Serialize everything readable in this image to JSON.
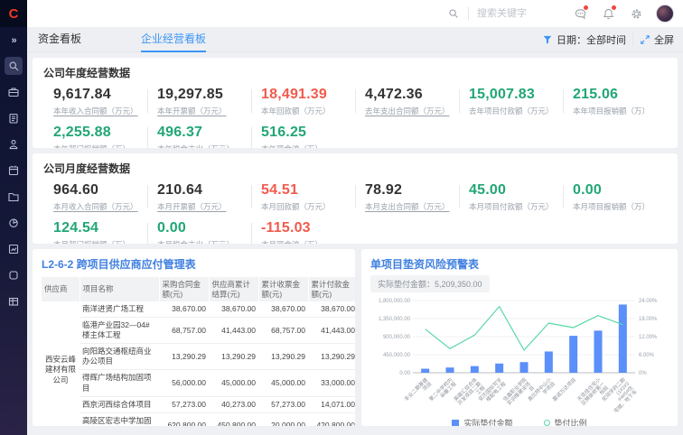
{
  "app": {
    "logo": "C"
  },
  "colors": {
    "accent_blue": "#3c95f5",
    "bar_blue": "#5b8ff9",
    "line_green": "#5ad8a6",
    "value_red": "#f15b4e",
    "value_green": "#21a675",
    "link_blue": "#7f9ef3",
    "panel_title_blue": "#4080e0"
  },
  "sidebar": {
    "collapse_icon": "»",
    "items": [
      {
        "icon": "search-icon",
        "active": true
      },
      {
        "icon": "briefcase-icon",
        "active": false
      },
      {
        "icon": "clipboard-icon",
        "active": false
      },
      {
        "icon": "person-icon",
        "active": false
      },
      {
        "icon": "calendar-icon",
        "active": false
      },
      {
        "icon": "folder-icon",
        "active": false
      },
      {
        "icon": "pie-icon",
        "active": false
      },
      {
        "icon": "report-icon",
        "active": false
      },
      {
        "icon": "app-icon",
        "active": false
      },
      {
        "icon": "table-icon",
        "active": false
      }
    ]
  },
  "topbar": {
    "search_placeholder": "搜索关键字"
  },
  "tabbar": {
    "tabs": [
      {
        "label": "资金看板",
        "active": false
      },
      {
        "label": "企业经营看板",
        "active": true
      }
    ],
    "date_filter_label": "日期：全部时间",
    "fullscreen_label": "全屏"
  },
  "annual": {
    "title": "公司年度经营数据",
    "metrics": [
      {
        "value": "9,617.84",
        "label": "本年收入合同额（万元）",
        "color": "dark",
        "underline": true
      },
      {
        "value": "19,297.85",
        "label": "本年开票额（万元）",
        "color": "dark",
        "underline": true
      },
      {
        "value": "18,491.39",
        "label": "本年回款额（万元）",
        "color": "red",
        "underline": false
      },
      {
        "value": "4,472.36",
        "label": "去年支出合同额（万元）",
        "color": "dark",
        "underline": true
      },
      {
        "value": "15,007.83",
        "label": "去年项目付款额（万元）",
        "color": "green",
        "underline": false
      },
      {
        "value": "215.06",
        "label": "本年项目报销额（万）",
        "color": "green",
        "underline": false
      },
      {
        "value": "2,255.88",
        "label": "本年部门报销额（万）",
        "color": "green",
        "underline": true
      },
      {
        "value": "496.37",
        "label": "本年税金支出（万元）",
        "color": "green",
        "underline": true
      },
      {
        "value": "516.25",
        "label": "本年现金流（万）",
        "color": "green",
        "underline": false
      }
    ]
  },
  "monthly": {
    "title": "公司月度经营数据",
    "metrics": [
      {
        "value": "964.60",
        "label": "本月收入合同额（万元）",
        "color": "dark",
        "underline": true
      },
      {
        "value": "210.64",
        "label": "本月开票额（万元）",
        "color": "dark",
        "underline": true
      },
      {
        "value": "54.51",
        "label": "本月回款额（万元）",
        "color": "red",
        "underline": false
      },
      {
        "value": "78.92",
        "label": "本月支出合同额（万元）",
        "color": "dark",
        "underline": true
      },
      {
        "value": "45.00",
        "label": "本月项目付款额（万元）",
        "color": "green",
        "underline": false
      },
      {
        "value": "0.00",
        "label": "本月项目报销额（万）",
        "color": "green",
        "underline": false
      },
      {
        "value": "124.54",
        "label": "本月部门报销额（万）",
        "color": "green",
        "underline": true
      },
      {
        "value": "0.00",
        "label": "本月税金支出（万元）",
        "color": "green",
        "underline": true
      },
      {
        "value": "-115.03",
        "label": "本月现金流（万）",
        "color": "red",
        "underline": false
      }
    ]
  },
  "supplier_table": {
    "title": "L2-6-2 跨项目供应商应付管理表",
    "columns": [
      "供应商",
      "项目名称",
      "采购合同金额(元)",
      "供应商累计结算(元)",
      "累计收票金额(元)",
      "累计付款金额(元)"
    ],
    "supplier": "西安云峰建材有限公司",
    "rows": [
      {
        "project": "南洋进贤广场工程",
        "values": [
          "38,670.00",
          "38,670.00",
          "38,670.00",
          "38,670.00"
        ]
      },
      {
        "project": "临港产业园32—04#楼主体工程",
        "values": [
          "68,757.00",
          "41,443.00",
          "68,757.00",
          "41,443.00"
        ]
      },
      {
        "project": "向阳路交通枢纽商业办公项目",
        "values": [
          "13,290.29",
          "13,290.29",
          "13,290.29",
          "13,290.29"
        ]
      },
      {
        "project": "得辉广场结构加固项目",
        "values": [
          "56,000.00",
          "45,000.00",
          "45,000.00",
          "33,000.00"
        ]
      },
      {
        "project": "西京河西综合体项目",
        "values": [
          "57,273.00",
          "40,273.00",
          "57,273.00",
          "14,071.00"
        ]
      },
      {
        "project": "高陵区宏志中学加固改造工程",
        "values": [
          "620,800.00",
          "450,800.00",
          "20,000.00",
          "420,800.00"
        ]
      }
    ]
  },
  "risk_panel": {
    "title": "单项目垫资风险预警表",
    "badge": "实际垫付金额：5,209,350.00",
    "legend": [
      {
        "label": "实际垫付金额",
        "type": "bar"
      },
      {
        "label": "垫付比例",
        "type": "line"
      }
    ]
  },
  "chart_data": {
    "type": "bar",
    "title": "单项目垫资风险预警表",
    "xlabel": "",
    "ylabel": "",
    "grid": true,
    "legend_position": "bottom",
    "categories": [
      "丰业二期基建项目",
      "第二中学校内采暖工程",
      "英雄汇综合体开发项目二期工程",
      "亚历国际写字楼配电工程",
      "信鑫职业学院实训楼建设项目",
      "奥比特中山小学项目",
      "嘉诚万达项目",
      "天奕佳住宅小区精装修第一标段",
      "宏润学府二期(1#2#3#4#5#住宅楼、地下车库及门卫)"
    ],
    "series": [
      {
        "name": "实际垫付金额",
        "type": "bar",
        "axis": "left",
        "values": [
          100000,
          130000,
          165000,
          230000,
          265000,
          530000,
          920000,
          1050000,
          1700000
        ]
      },
      {
        "name": "垫付比例",
        "type": "line",
        "axis": "right",
        "values": [
          14.5,
          8,
          12.5,
          22,
          7.5,
          16.5,
          15,
          19,
          16
        ]
      }
    ],
    "left_axis": {
      "lim": [
        0,
        1800000
      ],
      "ticks": [
        "0.00",
        "450,000.00",
        "900,000.00",
        "1,350,000.00",
        "1,800,000.00"
      ]
    },
    "right_axis": {
      "lim": [
        0,
        24
      ],
      "ticks": [
        "0%",
        "6.00%",
        "12.00%",
        "18.00%",
        "24.00%"
      ]
    }
  }
}
